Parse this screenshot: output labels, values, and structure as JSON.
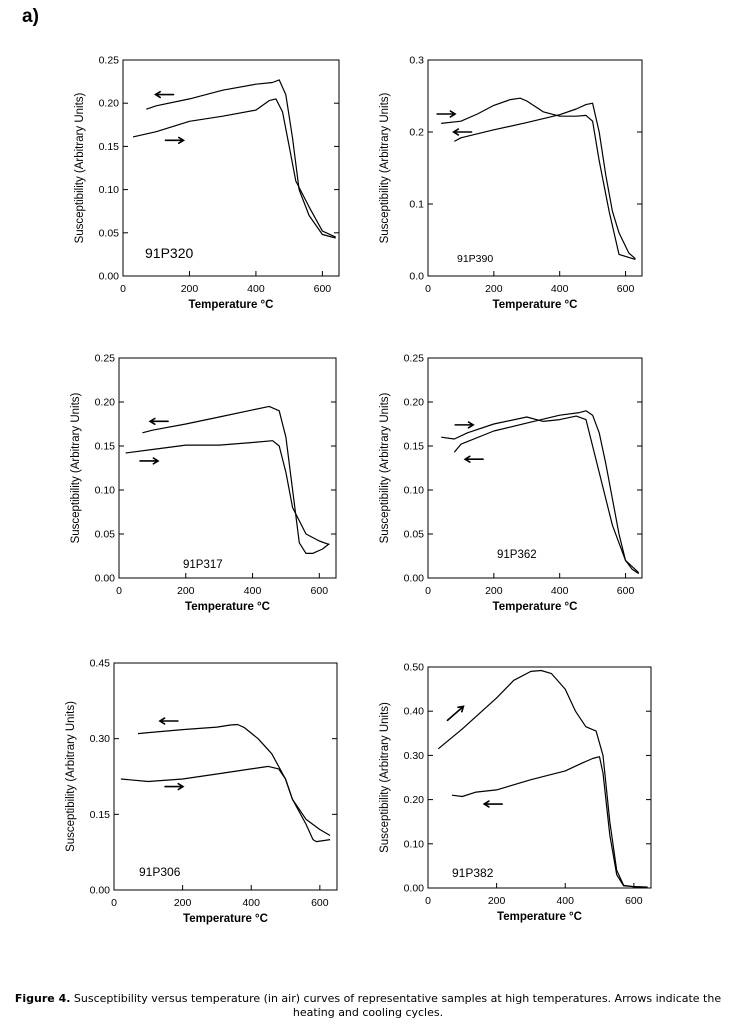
{
  "panel_label": "a)",
  "caption": {
    "label": "Figure 4.",
    "text": " Susceptibility versus temperature (in air) curves of representative samples at high temperatures. Arrows indicate the heating and cooling cycles."
  },
  "chart_data": [
    {
      "type": "line",
      "sample": "91P320",
      "xlabel": "Temperature °C",
      "ylabel": "Susceptibility (Arbitrary Units)",
      "xlim": [
        0,
        650
      ],
      "ylim": [
        0,
        0.25
      ],
      "xticks": [
        0,
        200,
        400,
        600
      ],
      "xtick_labels": [
        "0",
        "200",
        "400",
        "600"
      ],
      "yticks": [
        0,
        0.05,
        0.1,
        0.15,
        0.2,
        0.25
      ],
      "ytick_labels": [
        "0.00",
        "0.05",
        "0.10",
        "0.15",
        "0.20",
        "0.25"
      ],
      "series": [
        {
          "name": "heating",
          "x": [
            30,
            100,
            200,
            300,
            400,
            440,
            460,
            480,
            500,
            520,
            560,
            600,
            640
          ],
          "y": [
            0.161,
            0.167,
            0.179,
            0.185,
            0.192,
            0.203,
            0.205,
            0.19,
            0.15,
            0.11,
            0.08,
            0.052,
            0.045
          ]
        },
        {
          "name": "cooling",
          "x": [
            640,
            600,
            560,
            530,
            510,
            490,
            470,
            450,
            400,
            300,
            200,
            100,
            70
          ],
          "y": [
            0.044,
            0.048,
            0.07,
            0.1,
            0.16,
            0.21,
            0.227,
            0.224,
            0.222,
            0.215,
            0.205,
            0.197,
            0.193
          ]
        }
      ],
      "arrows": [
        {
          "direction": "left",
          "x": 125,
          "y": 0.21
        },
        {
          "direction": "right",
          "x": 155,
          "y": 0.157
        }
      ]
    },
    {
      "type": "line",
      "sample": "91P390",
      "xlabel": "Temperature °C",
      "ylabel": "Susceptibility (Arbitrary Units)",
      "xlim": [
        0,
        650
      ],
      "ylim": [
        0,
        0.3
      ],
      "xticks": [
        0,
        200,
        400,
        600
      ],
      "xtick_labels": [
        "0",
        "200",
        "400",
        "600"
      ],
      "yticks": [
        0,
        0.1,
        0.2,
        0.3
      ],
      "ytick_labels": [
        "0.0",
        "0.1",
        "0.2",
        "0.3"
      ],
      "series": [
        {
          "name": "heating",
          "x": [
            40,
            100,
            150,
            200,
            250,
            280,
            300,
            350,
            400,
            450,
            480,
            500,
            520,
            550,
            580,
            630
          ],
          "y": [
            0.212,
            0.215,
            0.225,
            0.237,
            0.245,
            0.247,
            0.243,
            0.228,
            0.222,
            0.222,
            0.223,
            0.215,
            0.16,
            0.09,
            0.03,
            0.023
          ]
        },
        {
          "name": "cooling",
          "x": [
            630,
            610,
            580,
            560,
            540,
            520,
            500,
            480,
            450,
            400,
            300,
            200,
            100,
            80
          ],
          "y": [
            0.024,
            0.032,
            0.06,
            0.09,
            0.14,
            0.2,
            0.24,
            0.238,
            0.232,
            0.224,
            0.213,
            0.203,
            0.192,
            0.187
          ]
        }
      ],
      "arrows": [
        {
          "direction": "right",
          "x": 55,
          "y": 0.225
        },
        {
          "direction": "left",
          "x": 105,
          "y": 0.2
        }
      ]
    },
    {
      "type": "line",
      "sample": "91P317",
      "xlabel": "Temperature °C",
      "ylabel": "Susceptibility (Arbitrary Units)",
      "xlim": [
        0,
        650
      ],
      "ylim": [
        0,
        0.25
      ],
      "xticks": [
        0,
        200,
        400,
        600
      ],
      "xtick_labels": [
        "0",
        "200",
        "400",
        "600"
      ],
      "yticks": [
        0,
        0.05,
        0.1,
        0.15,
        0.2,
        0.25
      ],
      "ytick_labels": [
        "0.00",
        "0.05",
        "0.10",
        "0.15",
        "0.20",
        "0.25"
      ],
      "series": [
        {
          "name": "heating",
          "x": [
            20,
            100,
            200,
            300,
            400,
            460,
            480,
            500,
            520,
            560,
            600,
            630
          ],
          "y": [
            0.142,
            0.146,
            0.151,
            0.151,
            0.154,
            0.156,
            0.15,
            0.12,
            0.08,
            0.05,
            0.042,
            0.038
          ]
        },
        {
          "name": "cooling",
          "x": [
            630,
            610,
            580,
            560,
            540,
            520,
            500,
            480,
            450,
            400,
            300,
            200,
            100,
            70
          ],
          "y": [
            0.039,
            0.033,
            0.028,
            0.028,
            0.04,
            0.1,
            0.16,
            0.19,
            0.195,
            0.191,
            0.183,
            0.175,
            0.168,
            0.165
          ]
        }
      ],
      "arrows": [
        {
          "direction": "left",
          "x": 120,
          "y": 0.178
        },
        {
          "direction": "right",
          "x": 90,
          "y": 0.133
        }
      ]
    },
    {
      "type": "line",
      "sample": "91P362",
      "xlabel": "Temperature °C",
      "ylabel": "Susceptibility (Arbitrary Units)",
      "xlim": [
        0,
        650
      ],
      "ylim": [
        0,
        0.25
      ],
      "xticks": [
        0,
        200,
        400,
        600
      ],
      "xtick_labels": [
        "0",
        "200",
        "400",
        "600"
      ],
      "yticks": [
        0,
        0.05,
        0.1,
        0.15,
        0.2,
        0.25
      ],
      "ytick_labels": [
        "0.00",
        "0.05",
        "0.10",
        "0.15",
        "0.20",
        "0.25"
      ],
      "series": [
        {
          "name": "heating",
          "x": [
            40,
            80,
            120,
            200,
            300,
            350,
            400,
            450,
            480,
            520,
            560,
            600,
            640
          ],
          "y": [
            0.16,
            0.158,
            0.165,
            0.175,
            0.183,
            0.178,
            0.18,
            0.184,
            0.18,
            0.12,
            0.06,
            0.02,
            0.006
          ]
        },
        {
          "name": "cooling",
          "x": [
            640,
            620,
            600,
            580,
            560,
            540,
            520,
            500,
            480,
            460,
            400,
            300,
            200,
            100,
            80
          ],
          "y": [
            0.005,
            0.01,
            0.02,
            0.05,
            0.09,
            0.13,
            0.165,
            0.185,
            0.19,
            0.188,
            0.185,
            0.176,
            0.167,
            0.152,
            0.143
          ]
        }
      ],
      "arrows": [
        {
          "direction": "right",
          "x": 110,
          "y": 0.174
        },
        {
          "direction": "left",
          "x": 140,
          "y": 0.135
        }
      ]
    },
    {
      "type": "line",
      "sample": "91P306",
      "xlabel": "Temperature °C",
      "ylabel": "Susceptibility (Arbitrary Units)",
      "xlim": [
        0,
        650
      ],
      "ylim": [
        0,
        0.45
      ],
      "xticks": [
        0,
        200,
        400,
        600
      ],
      "xtick_labels": [
        "0",
        "200",
        "400",
        "600"
      ],
      "yticks": [
        0,
        0.15,
        0.3,
        0.45
      ],
      "ytick_labels": [
        "0.00",
        "0.15",
        "0.30",
        "0.45"
      ],
      "series": [
        {
          "name": "heating",
          "x": [
            20,
            100,
            200,
            300,
            400,
            450,
            480,
            500,
            520,
            560,
            600,
            630
          ],
          "y": [
            0.22,
            0.215,
            0.22,
            0.23,
            0.24,
            0.245,
            0.24,
            0.22,
            0.18,
            0.14,
            0.12,
            0.108
          ]
        },
        {
          "name": "cooling",
          "x": [
            630,
            610,
            590,
            580,
            560,
            520,
            500,
            460,
            420,
            380,
            360,
            340,
            300,
            200,
            100,
            70
          ],
          "y": [
            0.1,
            0.098,
            0.096,
            0.1,
            0.13,
            0.18,
            0.22,
            0.27,
            0.3,
            0.322,
            0.328,
            0.327,
            0.323,
            0.318,
            0.312,
            0.31
          ]
        }
      ],
      "arrows": [
        {
          "direction": "left",
          "x": 160,
          "y": 0.335
        },
        {
          "direction": "right",
          "x": 175,
          "y": 0.205
        }
      ]
    },
    {
      "type": "line",
      "sample": "91P382",
      "xlabel": "Temperature °C",
      "ylabel": "Susceptibility (Arbitrary Units)",
      "xlim": [
        0,
        650
      ],
      "ylim": [
        0,
        0.5
      ],
      "xticks": [
        0,
        200,
        400,
        600
      ],
      "xtick_labels": [
        "0",
        "200",
        "400",
        "600"
      ],
      "yticks": [
        0,
        0.1,
        0.2,
        0.3,
        0.4,
        0.5
      ],
      "ytick_labels": [
        "0.00",
        "0.10",
        "0.20",
        "0.30",
        "0.40",
        "0.50"
      ],
      "series": [
        {
          "name": "heating",
          "x": [
            30,
            100,
            200,
            250,
            300,
            330,
            360,
            400,
            430,
            460,
            490,
            510,
            530,
            550,
            570,
            600,
            640
          ],
          "y": [
            0.315,
            0.36,
            0.43,
            0.47,
            0.49,
            0.492,
            0.485,
            0.45,
            0.4,
            0.365,
            0.355,
            0.3,
            0.15,
            0.04,
            0.006,
            0.003,
            0.002
          ]
        },
        {
          "name": "cooling",
          "x": [
            640,
            600,
            570,
            550,
            530,
            510,
            500,
            480,
            450,
            400,
            300,
            200,
            140,
            100,
            70
          ],
          "y": [
            0.002,
            0.003,
            0.005,
            0.03,
            0.12,
            0.26,
            0.297,
            0.293,
            0.283,
            0.265,
            0.245,
            0.222,
            0.217,
            0.207,
            0.21
          ]
        }
      ],
      "arrows": [
        {
          "direction": "up-right",
          "x": 80,
          "y": 0.395
        },
        {
          "direction": "left",
          "x": 190,
          "y": 0.19
        }
      ]
    }
  ]
}
